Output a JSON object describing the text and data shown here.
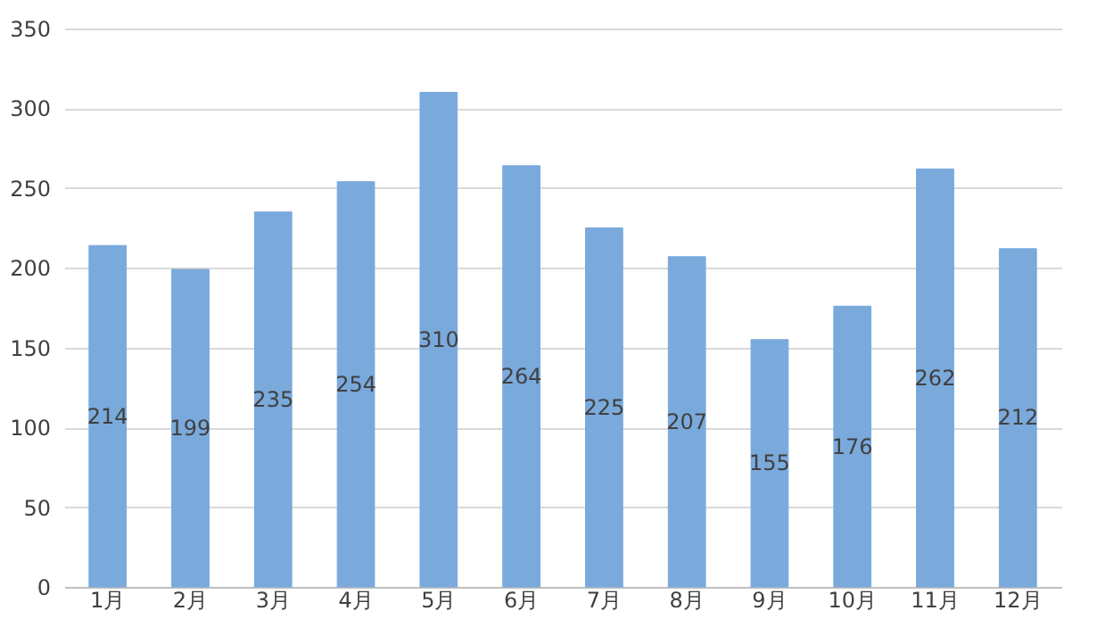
{
  "chart_data": {
    "type": "bar",
    "categories": [
      "1月",
      "2月",
      "3月",
      "4月",
      "5月",
      "6月",
      "7月",
      "8月",
      "9月",
      "10月",
      "11月",
      "12月"
    ],
    "values": [
      214,
      199,
      235,
      254,
      310,
      264,
      225,
      207,
      155,
      176,
      262,
      212
    ],
    "color": "#7aa9dc",
    "ylim": [
      0,
      350
    ],
    "yticks": [
      0,
      50,
      100,
      150,
      200,
      250,
      300,
      350
    ],
    "grid": "y",
    "data_labels": true
  }
}
